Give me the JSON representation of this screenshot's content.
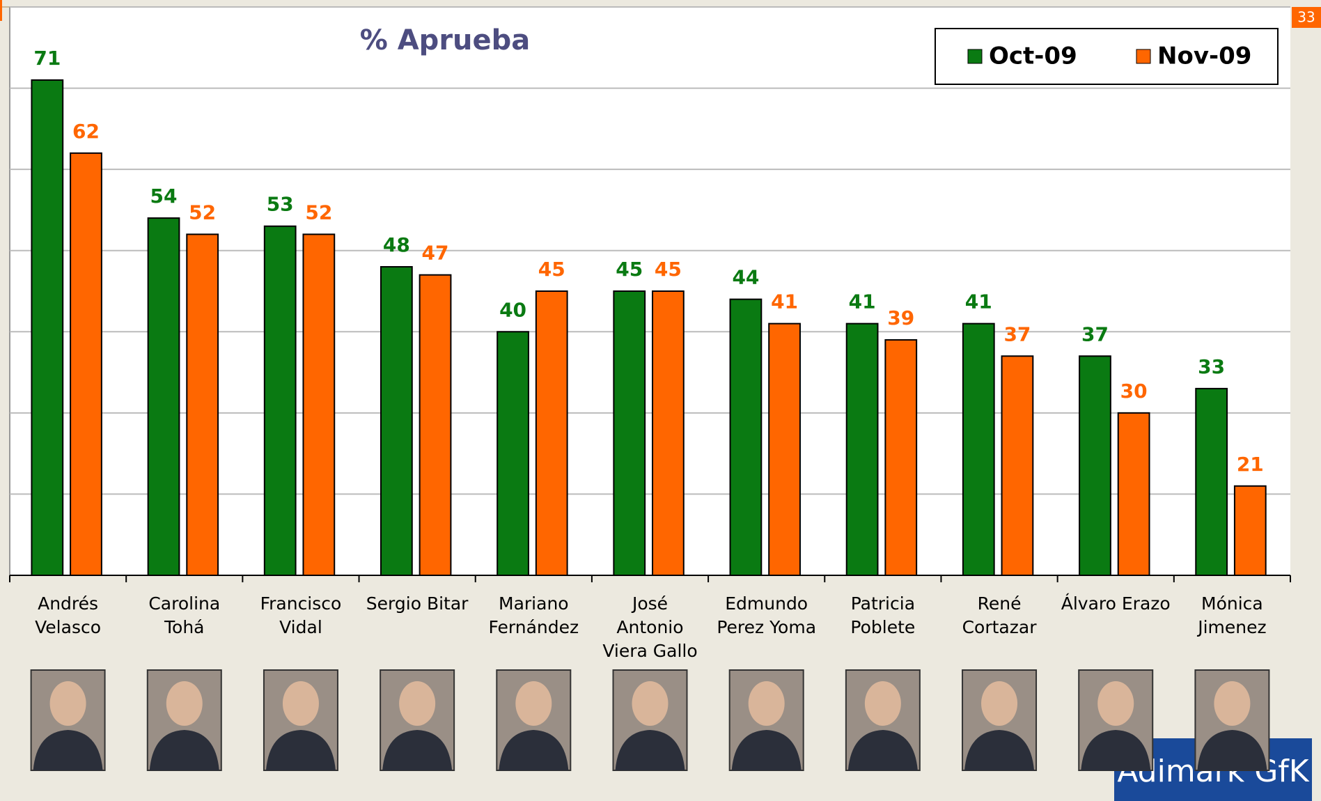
{
  "chart_data": {
    "type": "bar",
    "title": "% Aprueba",
    "categories": [
      [
        "Andrés",
        "Velasco"
      ],
      [
        "Carolina",
        "Tohá"
      ],
      [
        "Francisco",
        "Vidal"
      ],
      [
        "Sergio Bitar"
      ],
      [
        "Mariano",
        "Fernández"
      ],
      [
        "José",
        "Antonio",
        "Viera Gallo"
      ],
      [
        "Edmundo",
        "Perez Yoma"
      ],
      [
        "Patricia",
        "Poblete"
      ],
      [
        "René",
        "Cortazar"
      ],
      [
        "Álvaro Erazo"
      ],
      [
        "Mónica",
        "Jimenez"
      ]
    ],
    "series": [
      {
        "name": "Oct-09",
        "color": "#0a7a12",
        "values": [
          71,
          54,
          53,
          48,
          40,
          45,
          44,
          41,
          41,
          37,
          33
        ]
      },
      {
        "name": "Nov-09",
        "color": "#ff6600",
        "values": [
          62,
          52,
          52,
          47,
          45,
          45,
          41,
          39,
          37,
          30,
          21
        ]
      }
    ],
    "ylim": [
      10,
      80
    ],
    "yticks": [
      10,
      20,
      30,
      40,
      50,
      60,
      70,
      80
    ],
    "grid": true,
    "legend": "top-right",
    "page_number": "33",
    "logo": "Adimark GfK"
  }
}
